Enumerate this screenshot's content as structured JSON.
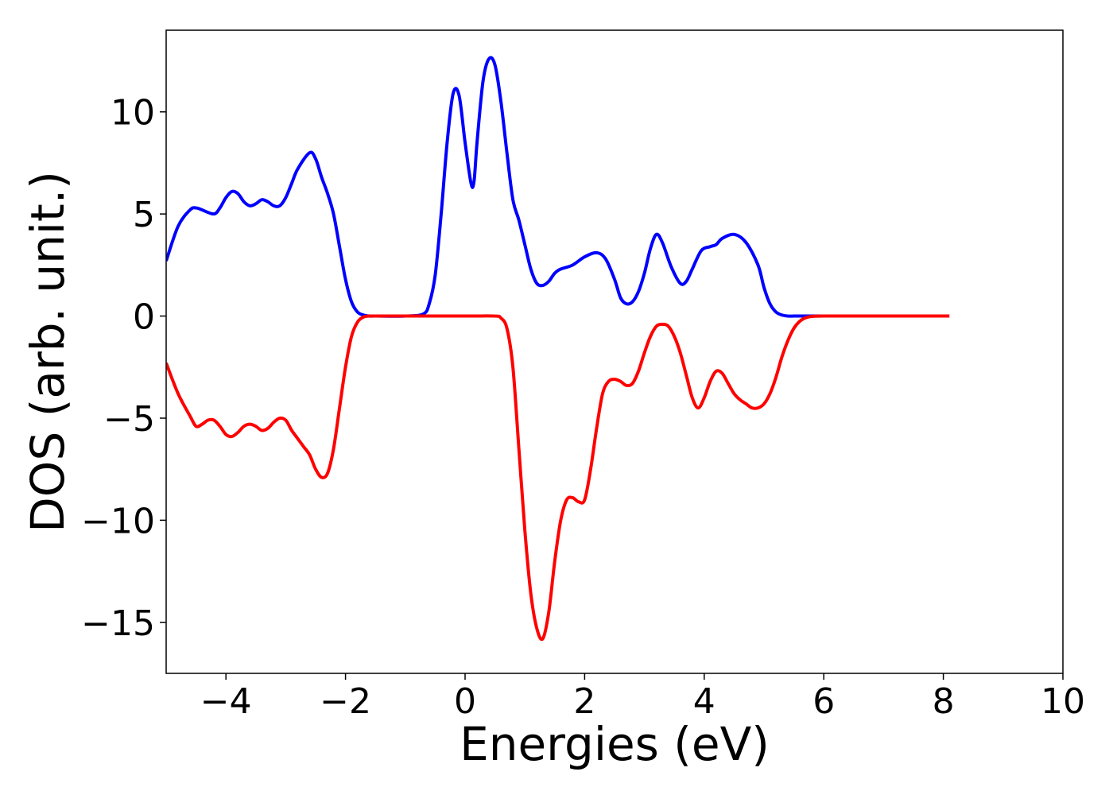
{
  "chart_data": {
    "type": "line",
    "title": "",
    "xlabel": "Energies (eV)",
    "ylabel": "DOS (arb. unit.)",
    "xlim": [
      -5,
      10
    ],
    "ylim": [
      -17.5,
      14
    ],
    "x_ticks": [
      -4,
      -2,
      0,
      2,
      4,
      6,
      8,
      10
    ],
    "y_ticks": [
      -15,
      -10,
      -5,
      0,
      5,
      10
    ],
    "x_tick_labels": [
      "−4",
      "−2",
      "0",
      "2",
      "4",
      "6",
      "8",
      "10"
    ],
    "y_tick_labels": [
      "−15",
      "−10",
      "−5",
      "0",
      "5",
      "10"
    ],
    "grid": false,
    "legend": "none",
    "series": [
      {
        "color": "#0000ff",
        "x": [
          -5.0,
          -4.8,
          -4.6,
          -4.5,
          -4.4,
          -4.2,
          -4.1,
          -4.0,
          -3.9,
          -3.8,
          -3.7,
          -3.6,
          -3.5,
          -3.4,
          -3.3,
          -3.2,
          -3.1,
          -3.0,
          -2.9,
          -2.8,
          -2.6,
          -2.5,
          -2.4,
          -2.3,
          -2.2,
          -2.1,
          -2.0,
          -1.9,
          -1.8,
          -1.7,
          -1.6,
          -1.5,
          -1.0,
          -0.7,
          -0.6,
          -0.5,
          -0.4,
          -0.3,
          -0.2,
          -0.1,
          0.0,
          0.1,
          0.15,
          0.2,
          0.3,
          0.4,
          0.5,
          0.6,
          0.7,
          0.8,
          0.9,
          1.0,
          1.1,
          1.2,
          1.3,
          1.4,
          1.5,
          1.6,
          1.8,
          2.0,
          2.2,
          2.35,
          2.5,
          2.6,
          2.7,
          2.8,
          2.9,
          3.0,
          3.1,
          3.2,
          3.3,
          3.45,
          3.6,
          3.7,
          3.8,
          3.95,
          4.1,
          4.2,
          4.3,
          4.5,
          4.7,
          4.9,
          5.0,
          5.1,
          5.2,
          5.3,
          5.4,
          5.5,
          5.6,
          5.7,
          5.8,
          6.0,
          7.0,
          8.1
        ],
        "y": [
          2.7,
          4.4,
          5.2,
          5.3,
          5.2,
          5.0,
          5.3,
          5.8,
          6.1,
          6.0,
          5.6,
          5.4,
          5.5,
          5.7,
          5.6,
          5.4,
          5.4,
          5.8,
          6.5,
          7.2,
          8.0,
          7.7,
          6.8,
          6.0,
          5.0,
          3.4,
          1.8,
          0.7,
          0.2,
          0.05,
          0.0,
          0.0,
          0.0,
          0.1,
          0.6,
          2.0,
          5.0,
          8.5,
          10.9,
          10.8,
          8.5,
          6.5,
          6.6,
          8.5,
          11.5,
          12.6,
          12.3,
          10.5,
          8.0,
          5.7,
          4.7,
          3.5,
          2.3,
          1.6,
          1.5,
          1.7,
          2.1,
          2.3,
          2.5,
          2.9,
          3.1,
          2.8,
          1.8,
          0.9,
          0.6,
          0.7,
          1.2,
          2.1,
          3.3,
          4.0,
          3.6,
          2.4,
          1.6,
          1.7,
          2.3,
          3.2,
          3.4,
          3.5,
          3.8,
          4.0,
          3.6,
          2.5,
          1.4,
          0.6,
          0.2,
          0.05,
          0.0,
          0.0,
          0.0,
          0.0,
          0.0,
          0.0,
          0.0,
          0.0
        ]
      },
      {
        "color": "#ff0000",
        "x": [
          -5.0,
          -4.8,
          -4.6,
          -4.5,
          -4.4,
          -4.3,
          -4.2,
          -4.1,
          -4.0,
          -3.9,
          -3.8,
          -3.7,
          -3.6,
          -3.5,
          -3.4,
          -3.3,
          -3.2,
          -3.1,
          -3.0,
          -2.9,
          -2.8,
          -2.7,
          -2.6,
          -2.5,
          -2.4,
          -2.3,
          -2.2,
          -2.1,
          -2.0,
          -1.9,
          -1.8,
          -1.7,
          -1.6,
          -1.5,
          -1.0,
          0.0,
          0.5,
          0.6,
          0.7,
          0.8,
          0.9,
          1.0,
          1.1,
          1.2,
          1.3,
          1.4,
          1.5,
          1.6,
          1.7,
          1.8,
          1.9,
          2.0,
          2.1,
          2.2,
          2.3,
          2.4,
          2.5,
          2.6,
          2.7,
          2.8,
          2.9,
          3.0,
          3.1,
          3.2,
          3.3,
          3.4,
          3.5,
          3.6,
          3.7,
          3.8,
          3.9,
          4.0,
          4.1,
          4.2,
          4.3,
          4.4,
          4.5,
          4.6,
          4.7,
          4.8,
          4.9,
          5.0,
          5.1,
          5.2,
          5.3,
          5.4,
          5.5,
          5.6,
          5.7,
          5.8,
          6.0,
          7.0,
          8.1
        ],
        "y": [
          -2.3,
          -3.8,
          -4.9,
          -5.4,
          -5.3,
          -5.1,
          -5.1,
          -5.4,
          -5.8,
          -5.9,
          -5.7,
          -5.4,
          -5.3,
          -5.4,
          -5.6,
          -5.5,
          -5.2,
          -5.0,
          -5.1,
          -5.6,
          -6.0,
          -6.4,
          -6.8,
          -7.5,
          -7.9,
          -7.7,
          -6.5,
          -4.5,
          -2.5,
          -1.0,
          -0.3,
          -0.05,
          0.0,
          0.0,
          0.0,
          0.0,
          0.0,
          -0.1,
          -0.6,
          -2.5,
          -6.5,
          -10.5,
          -13.6,
          -15.3,
          -15.8,
          -14.5,
          -12.0,
          -10.0,
          -9.0,
          -8.9,
          -9.1,
          -9.0,
          -7.5,
          -5.5,
          -3.8,
          -3.2,
          -3.1,
          -3.2,
          -3.4,
          -3.3,
          -2.7,
          -1.8,
          -1.0,
          -0.5,
          -0.4,
          -0.5,
          -1.0,
          -1.8,
          -2.9,
          -4.0,
          -4.5,
          -4.0,
          -3.2,
          -2.7,
          -2.8,
          -3.3,
          -3.8,
          -4.1,
          -4.3,
          -4.5,
          -4.5,
          -4.3,
          -3.8,
          -3.0,
          -2.0,
          -1.2,
          -0.6,
          -0.25,
          -0.08,
          -0.02,
          0.0,
          0.0,
          0.0
        ]
      }
    ]
  }
}
